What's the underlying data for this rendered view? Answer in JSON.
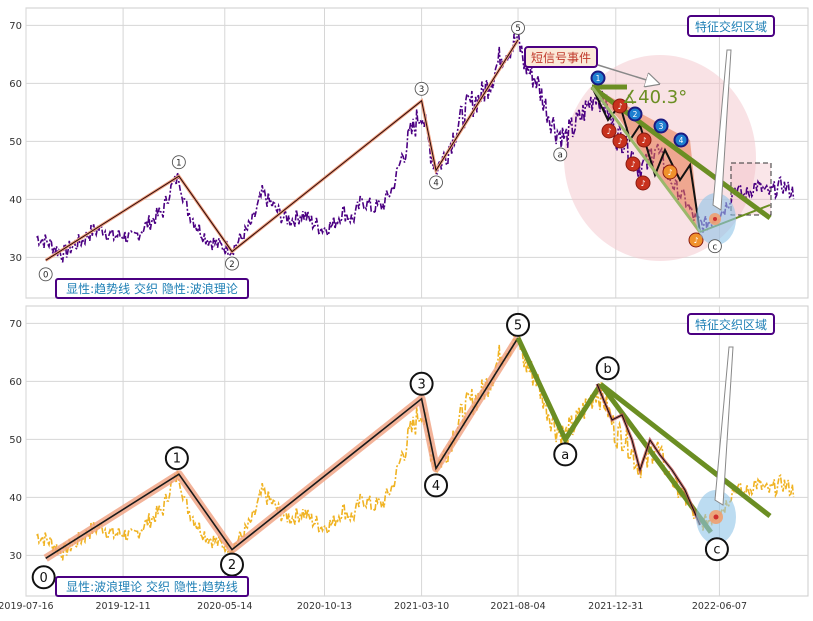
{
  "chart_data": {
    "type": "line",
    "shared_x_ticks": [
      "2019-07-16",
      "2019-12-11",
      "2020-05-14",
      "2020-10-13",
      "2021-03-10",
      "2021-08-04",
      "2021-12-31",
      "2022-06-07"
    ],
    "x_range": [
      "2019-07-16",
      "2022-10-20"
    ],
    "panels": [
      {
        "id": "top",
        "ylim": [
          23,
          73
        ],
        "yticks": [
          30,
          40,
          50,
          60,
          70
        ],
        "grid": true,
        "caption": "显性:趋势线 交织 隐性:波浪理论",
        "series_color": "#4b0082",
        "price_series": [
          [
            "2019-08-01",
            33.5
          ],
          [
            "2019-08-20",
            32.5
          ],
          [
            "2019-09-10",
            30.5
          ],
          [
            "2019-09-20",
            31.5
          ],
          [
            "2019-10-10",
            33.0
          ],
          [
            "2019-10-25",
            34.5
          ],
          [
            "2019-11-10",
            35.0
          ],
          [
            "2019-11-25",
            33.5
          ],
          [
            "2019-12-10",
            34.0
          ],
          [
            "2019-12-25",
            33.0
          ],
          [
            "2020-01-10",
            35.0
          ],
          [
            "2020-01-25",
            36.5
          ],
          [
            "2020-02-10",
            38.0
          ],
          [
            "2020-02-20",
            41.5
          ],
          [
            "2020-03-05",
            44.0
          ],
          [
            "2020-03-15",
            39.0
          ],
          [
            "2020-04-01",
            35.5
          ],
          [
            "2020-04-15",
            33.5
          ],
          [
            "2020-05-05",
            32.0
          ],
          [
            "2020-05-25",
            31.5
          ],
          [
            "2020-06-10",
            33.5
          ],
          [
            "2020-06-25",
            36.0
          ],
          [
            "2020-07-10",
            41.0
          ],
          [
            "2020-07-25",
            39.0
          ],
          [
            "2020-08-10",
            37.0
          ],
          [
            "2020-08-25",
            36.5
          ],
          [
            "2020-09-10",
            37.5
          ],
          [
            "2020-09-25",
            36.0
          ],
          [
            "2020-10-10",
            35.0
          ],
          [
            "2020-10-25",
            35.5
          ],
          [
            "2020-11-10",
            38.0
          ],
          [
            "2020-11-25",
            36.5
          ],
          [
            "2020-12-10",
            40.0
          ],
          [
            "2020-12-25",
            38.5
          ],
          [
            "2021-01-10",
            39.0
          ],
          [
            "2021-01-25",
            42.0
          ],
          [
            "2021-02-10",
            48.0
          ],
          [
            "2021-02-25",
            52.0
          ],
          [
            "2021-03-10",
            55.5
          ],
          [
            "2021-03-20",
            50.0
          ],
          [
            "2021-04-01",
            45.5
          ],
          [
            "2021-04-15",
            47.5
          ],
          [
            "2021-05-01",
            52.0
          ],
          [
            "2021-05-20",
            56.0
          ],
          [
            "2021-06-10",
            58.0
          ],
          [
            "2021-06-25",
            61.0
          ],
          [
            "2021-07-10",
            65.0
          ],
          [
            "2021-07-25",
            66.5
          ],
          [
            "2021-08-04",
            67.5
          ],
          [
            "2021-08-15",
            63.0
          ],
          [
            "2021-09-01",
            60.5
          ],
          [
            "2021-09-15",
            56.0
          ],
          [
            "2021-10-01",
            52.0
          ],
          [
            "2021-10-15",
            50.5
          ],
          [
            "2021-11-01",
            53.0
          ],
          [
            "2021-11-15",
            55.5
          ],
          [
            "2021-12-01",
            58.5
          ],
          [
            "2021-12-15",
            56.5
          ],
          [
            "2021-12-31",
            51.0
          ],
          [
            "2022-01-15",
            50.5
          ],
          [
            "2022-02-01",
            46.0
          ],
          [
            "2022-02-15",
            45.5
          ],
          [
            "2022-03-01",
            49.5
          ],
          [
            "2022-03-15",
            45.0
          ],
          [
            "2022-04-01",
            42.0
          ],
          [
            "2022-04-15",
            40.0
          ],
          [
            "2022-05-01",
            36.5
          ],
          [
            "2022-05-15",
            35.5
          ],
          [
            "2022-06-01",
            37.0
          ],
          [
            "2022-06-15",
            38.5
          ],
          [
            "2022-07-01",
            42.0
          ],
          [
            "2022-07-15",
            40.5
          ],
          [
            "2022-08-01",
            42.5
          ],
          [
            "2022-08-20",
            41.0
          ],
          [
            "2022-09-10",
            42.5
          ],
          [
            "2022-09-30",
            41.0
          ]
        ],
        "wave_points": [
          {
            "label": "0",
            "date": "2019-08-15",
            "value": 29.5
          },
          {
            "label": "1",
            "date": "2020-03-05",
            "value": 44.0
          },
          {
            "label": "2",
            "date": "2020-05-25",
            "value": 31.0
          },
          {
            "label": "3",
            "date": "2021-03-10",
            "value": 57.0
          },
          {
            "label": "4",
            "date": "2021-04-01",
            "value": 45.0
          },
          {
            "label": "5",
            "date": "2021-08-04",
            "value": 67.5
          },
          {
            "label": "a",
            "date": "2021-10-15",
            "value": 50.0
          },
          {
            "label": "b",
            "date": "2021-12-08",
            "value": 59.5
          },
          {
            "label": "c",
            "date": "2022-05-25",
            "value": 34.0
          }
        ],
        "blue_markers": [
          "1",
          "2",
          "3",
          "4"
        ],
        "angle_label": "∡40.3°",
        "callout_short": "短信号事件",
        "callout_zone": "特征交织区域"
      },
      {
        "id": "bottom",
        "ylim": [
          23,
          73
        ],
        "yticks": [
          30,
          40,
          50,
          60,
          70
        ],
        "grid": true,
        "caption": "显性:波浪理论 交织 隐性:趋势线",
        "series_color": "#f0b323",
        "wave_points": [
          {
            "label": "0",
            "date": "2019-08-15",
            "value": 29.5
          },
          {
            "label": "1",
            "date": "2020-03-05",
            "value": 44.0
          },
          {
            "label": "2",
            "date": "2020-05-25",
            "value": 31.0
          },
          {
            "label": "3",
            "date": "2021-03-10",
            "value": 57.0
          },
          {
            "label": "4",
            "date": "2021-04-01",
            "value": 45.0
          },
          {
            "label": "5",
            "date": "2021-08-04",
            "value": 67.5
          },
          {
            "label": "a",
            "date": "2021-10-15",
            "value": 50.0
          },
          {
            "label": "b",
            "date": "2021-12-08",
            "value": 59.5
          },
          {
            "label": "c",
            "date": "2022-05-25",
            "value": 34.0
          }
        ],
        "callout_zone": "特征交织区域"
      }
    ]
  }
}
